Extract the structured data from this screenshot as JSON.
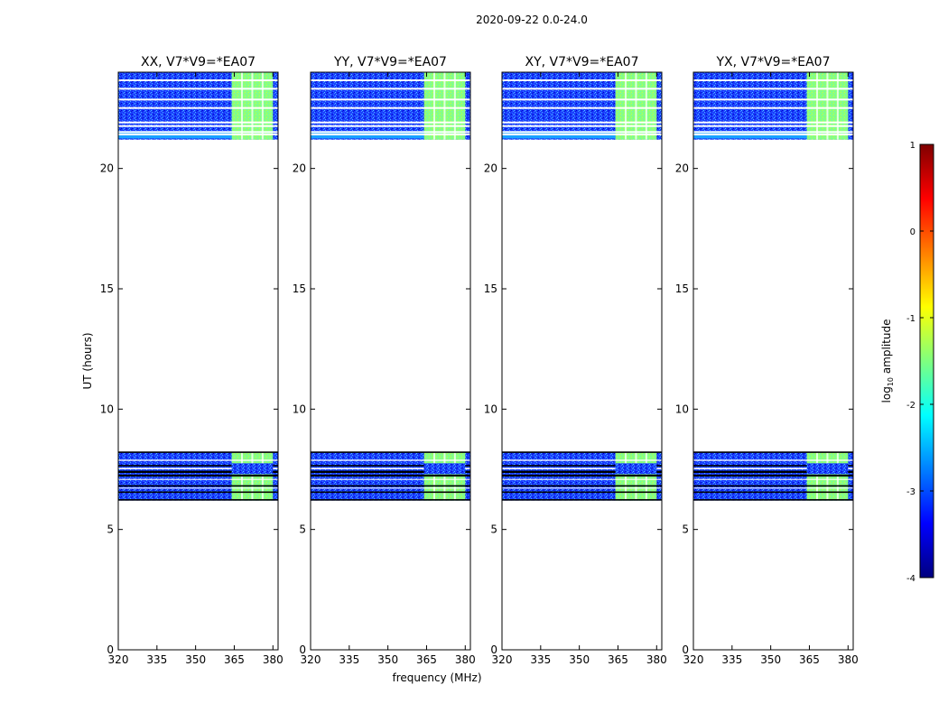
{
  "figure_title": "2020-09-22 0.0-24.0",
  "chart_data": [
    {
      "type": "heatmap",
      "title": "XX, V7*V9=*EA07",
      "xlabel": "",
      "ylabel": "UT (hours)",
      "xlim": [
        320,
        382
      ],
      "ylim": [
        0,
        24
      ],
      "xticks": [
        320,
        335,
        350,
        365,
        380
      ],
      "yticks": [
        0,
        5,
        10,
        15,
        20
      ],
      "data_blocks_ut_hours": [
        [
          6.2,
          8.2
        ],
        [
          21.2,
          24.0
        ]
      ],
      "strong_band_mhz": [
        364,
        380
      ]
    },
    {
      "type": "heatmap",
      "title": "YY, V7*V9=*EA07",
      "xlabel": "frequency (MHz)",
      "ylabel": "",
      "xlim": [
        320,
        382
      ],
      "ylim": [
        0,
        24
      ],
      "xticks": [
        320,
        335,
        350,
        365,
        380
      ],
      "yticks": [
        0,
        5,
        10,
        15,
        20
      ],
      "data_blocks_ut_hours": [
        [
          6.2,
          8.2
        ],
        [
          21.2,
          24.0
        ]
      ],
      "strong_band_mhz": [
        364,
        380
      ]
    },
    {
      "type": "heatmap",
      "title": "XY, V7*V9=*EA07",
      "xlabel": "",
      "ylabel": "",
      "xlim": [
        320,
        382
      ],
      "ylim": [
        0,
        24
      ],
      "xticks": [
        320,
        335,
        350,
        365,
        380
      ],
      "yticks": [
        0,
        5,
        10,
        15,
        20
      ],
      "data_blocks_ut_hours": [
        [
          6.2,
          8.2
        ],
        [
          21.2,
          24.0
        ]
      ],
      "strong_band_mhz": [
        364,
        380
      ]
    },
    {
      "type": "heatmap",
      "title": "YX, V7*V9=*EA07",
      "xlabel": "",
      "ylabel": "",
      "xlim": [
        320,
        382
      ],
      "ylim": [
        0,
        24
      ],
      "xticks": [
        320,
        335,
        350,
        365,
        380
      ],
      "yticks": [
        0,
        5,
        10,
        15,
        20
      ],
      "data_blocks_ut_hours": [
        [
          6.2,
          8.2
        ],
        [
          21.2,
          24.0
        ]
      ],
      "strong_band_mhz": [
        364,
        380
      ]
    }
  ],
  "colorbar": {
    "label_main": "log",
    "label_sub": "10",
    "label_end": " amplitude",
    "range": [
      -4,
      1
    ],
    "ticks": [
      1,
      0,
      -1,
      -2,
      -3,
      -4
    ],
    "colors": [
      "#00007f",
      "#0000ff",
      "#007fff",
      "#00ffff",
      "#7fff7f",
      "#ffff00",
      "#ff7f00",
      "#ff0000",
      "#7f0000"
    ]
  }
}
